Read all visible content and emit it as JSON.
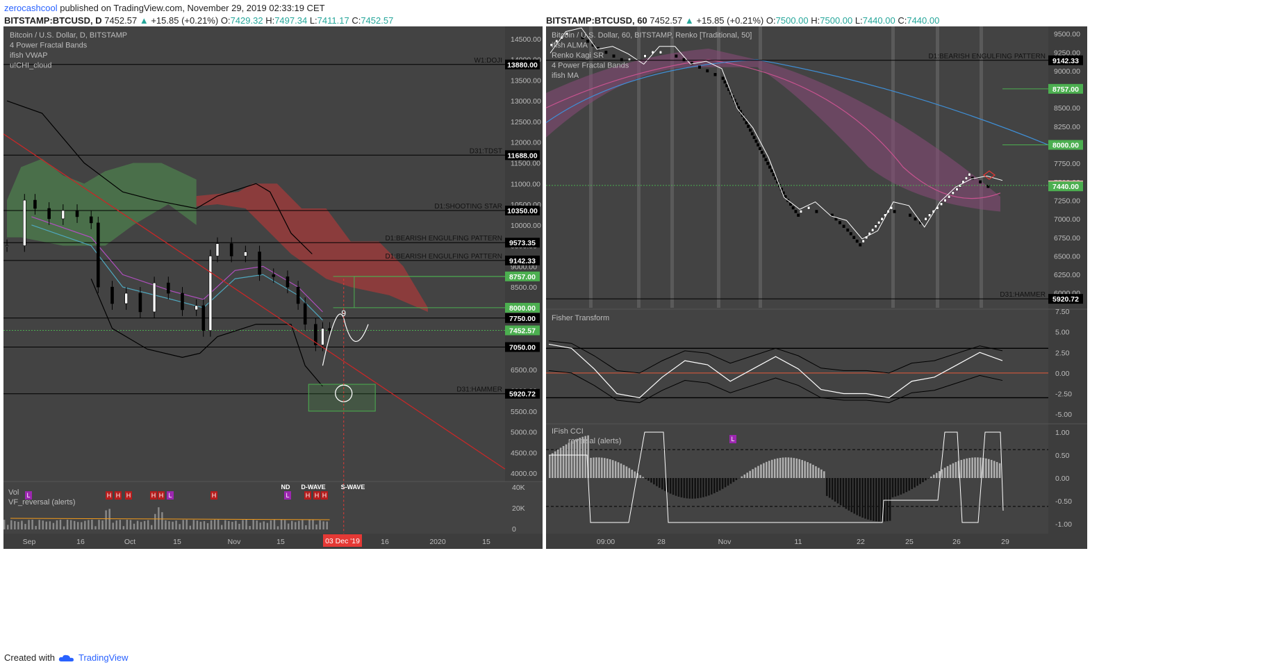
{
  "header": {
    "username": "zerocashcool",
    "published_text": " published on TradingView.com, November 29, 2019 02:33:19 CET"
  },
  "left": {
    "symbol": "BITSTAMP:BTCUSD, D",
    "price": "7452.57",
    "change": "+15.85 (+0.21%)",
    "o_label": "O:",
    "o": "7429.32",
    "h_label": "H:",
    "h": "7497.34",
    "l_label": "L:",
    "l": "7411.17",
    "c_label": "C:",
    "c": "7452.57",
    "legend": [
      "Bitcoin / U.S. Dollar, D, BITSTAMP",
      "4 Power Fractal Bands",
      "ifish VWAP",
      "u!CHI_cloud"
    ],
    "price_ticks": [
      "14500.00",
      "14000.00",
      "13500.00",
      "13000.00",
      "12500.00",
      "12000.00",
      "11500.00",
      "11000.00",
      "10500.00",
      "10000.00",
      "9500.00",
      "9000.00",
      "8500.00",
      "8000.00",
      "7500.00",
      "7000.00",
      "6500.00",
      "6000.00",
      "5500.00",
      "5000.00",
      "4500.00",
      "4000.00"
    ],
    "levels": [
      {
        "value": "13880.00",
        "label": "W1:DOJI",
        "style": "dark"
      },
      {
        "value": "11688.00",
        "label": "D31:TDST",
        "style": "dark"
      },
      {
        "value": "10350.00",
        "label": "D1:SHOOTING STAR",
        "style": "dark"
      },
      {
        "value": "9573.35",
        "label": "D1:BEARISH ENGULFING PATTERN",
        "style": "dark"
      },
      {
        "value": "9142.33",
        "label": "D1:BEARISH ENGULFING PATTERN",
        "style": "dark"
      },
      {
        "value": "8757.00",
        "label": "",
        "style": "green"
      },
      {
        "value": "8000.00",
        "label": "",
        "style": "green"
      },
      {
        "value": "7750.00",
        "label": "",
        "style": "dark"
      },
      {
        "value": "7452.57",
        "label": "",
        "style": "green"
      },
      {
        "value": "7050.00",
        "label": "",
        "style": "dark"
      },
      {
        "value": "5920.72",
        "label": "D31:HAMMER",
        "style": "dark"
      }
    ],
    "count_label": "9",
    "volume": {
      "title": "Vol",
      "indicator": "VF_reversal (alerts)",
      "ticks": [
        "40K",
        "20K",
        "0"
      ],
      "markers": [
        "L",
        "H",
        "H",
        "H",
        "H",
        "H",
        "L",
        "H",
        "L",
        "H",
        "H",
        "H"
      ],
      "wave_labels": [
        "ND",
        "D-WAVE",
        "S-WAVE"
      ]
    },
    "time_ticks": [
      "Sep",
      "16",
      "Oct",
      "15",
      "Nov",
      "15",
      "03 Dec '19",
      "16",
      "2020",
      "15"
    ],
    "highlight_date": "03 Dec '19"
  },
  "right": {
    "symbol": "BITSTAMP:BTCUSD, 60",
    "price": "7452.57",
    "change": "+15.85 (+0.21%)",
    "o_label": "O:",
    "o": "7500.00",
    "h_label": "H:",
    "h": "7500.00",
    "l_label": "L:",
    "l": "7440.00",
    "c_label": "C:",
    "c": "7440.00",
    "legend": [
      "Bitcoin / U.S. Dollar, 60, BITSTAMP, Renko [Traditional, 50]",
      "ifish ALMA",
      "Renko Kagi SR",
      "4 Power Fractal Bands",
      "ifish MA"
    ],
    "price_ticks": [
      "9500.00",
      "9250.00",
      "9000.00",
      "8750.00",
      "8500.00",
      "8250.00",
      "8000.00",
      "7750.00",
      "7500.00",
      "7250.00",
      "7000.00",
      "6750.00",
      "6500.00",
      "6250.00",
      "6000.00"
    ],
    "levels": [
      {
        "value": "9142.33",
        "label": "D1:BEARISH ENGULFING PATTERN",
        "style": "dark"
      },
      {
        "value": "8757.00",
        "label": "",
        "style": "green"
      },
      {
        "value": "8000.00",
        "label": "",
        "style": "green"
      },
      {
        "value": "7452.57",
        "label": "",
        "style": "pink"
      },
      {
        "value": "7440.00",
        "label": "",
        "style": "green"
      },
      {
        "value": "5920.72",
        "label": "D31:HAMMER",
        "style": "dark"
      }
    ],
    "fisher": {
      "title": "Fisher Transform",
      "ticks": [
        "7.50",
        "5.00",
        "2.50",
        "0.00",
        "-2.50",
        "-5.00"
      ]
    },
    "cci": {
      "title": "IFish CCI",
      "subtitle": "reversal (alerts)",
      "ticks": [
        "1.00",
        "0.50",
        "0.00",
        "-0.50",
        "-1.00"
      ],
      "marker": "L"
    },
    "time_ticks": [
      "09:00",
      "28",
      "Nov",
      "11",
      "22",
      "25",
      "26",
      "29"
    ]
  },
  "footer": {
    "created_with": "Created with",
    "brand": "TradingView"
  },
  "colors": {
    "background": "#434343",
    "bull": "#26a69a",
    "bear": "#ef5350",
    "label_green": "#4caf50",
    "label_dark": "#000000"
  },
  "chart_data": [
    {
      "type": "candlestick",
      "title": "Bitcoin / U.S. Dollar, D, BITSTAMP",
      "ylim": [
        3800,
        14800
      ],
      "x_range": [
        "2019-08-28",
        "2020-01-18"
      ],
      "close_series": [
        {
          "date": "2019-08-29",
          "close": 9500
        },
        {
          "date": "2019-09-03",
          "close": 10600
        },
        {
          "date": "2019-09-06",
          "close": 10400
        },
        {
          "date": "2019-09-10",
          "close": 10150
        },
        {
          "date": "2019-09-14",
          "close": 10350
        },
        {
          "date": "2019-09-18",
          "close": 10200
        },
        {
          "date": "2019-09-22",
          "close": 10050
        },
        {
          "date": "2019-09-24",
          "close": 8500
        },
        {
          "date": "2019-09-28",
          "close": 8100
        },
        {
          "date": "2019-10-02",
          "close": 8350
        },
        {
          "date": "2019-10-06",
          "close": 7900
        },
        {
          "date": "2019-10-10",
          "close": 8600
        },
        {
          "date": "2019-10-14",
          "close": 8350
        },
        {
          "date": "2019-10-18",
          "close": 7950
        },
        {
          "date": "2019-10-22",
          "close": 8050
        },
        {
          "date": "2019-10-24",
          "close": 7450
        },
        {
          "date": "2019-10-26",
          "close": 9250
        },
        {
          "date": "2019-10-28",
          "close": 9550
        },
        {
          "date": "2019-11-01",
          "close": 9250
        },
        {
          "date": "2019-11-05",
          "close": 9350
        },
        {
          "date": "2019-11-09",
          "close": 8800
        },
        {
          "date": "2019-11-13",
          "close": 8750
        },
        {
          "date": "2019-11-17",
          "close": 8500
        },
        {
          "date": "2019-11-20",
          "close": 8100
        },
        {
          "date": "2019-11-22",
          "close": 7600
        },
        {
          "date": "2019-11-25",
          "close": 7100
        },
        {
          "date": "2019-11-27",
          "close": 7500
        },
        {
          "date": "2019-11-29",
          "close": 7452.57
        }
      ]
    },
    {
      "type": "line",
      "title": "Bitcoin / U.S. Dollar, 60, BITSTAMP, Renko [Traditional, 50]",
      "ylim": [
        5800,
        9600
      ],
      "x": [
        0,
        1,
        2,
        3,
        4,
        5,
        6,
        7,
        8,
        9,
        10,
        11,
        12,
        13,
        14,
        15,
        16,
        17,
        18,
        19,
        20,
        21,
        22,
        23,
        24,
        25,
        26,
        27,
        28,
        29
      ],
      "y": [
        9300,
        9450,
        9500,
        9350,
        9250,
        9150,
        9150,
        9250,
        9250,
        9150,
        9050,
        8950,
        8550,
        8150,
        7750,
        7350,
        7050,
        7150,
        7100,
        6900,
        6650,
        6900,
        7150,
        7100,
        6950,
        7150,
        7350,
        7600,
        7500,
        7440
      ]
    },
    {
      "type": "line",
      "title": "Fisher Transform",
      "ylim": [
        -6,
        7.5
      ],
      "x": [
        0,
        1,
        2,
        3,
        4,
        5,
        6,
        7,
        8,
        9,
        10,
        11,
        12,
        13,
        14,
        15,
        16,
        17,
        18,
        19,
        20
      ],
      "y": [
        3.5,
        3.0,
        0.5,
        -2.5,
        -3.0,
        -0.5,
        1.5,
        1.0,
        -1.0,
        0.5,
        2.0,
        0.5,
        -2.0,
        -2.5,
        -2.5,
        -3.0,
        -1.0,
        -0.5,
        1.0,
        2.5,
        1.5
      ]
    }
  ]
}
